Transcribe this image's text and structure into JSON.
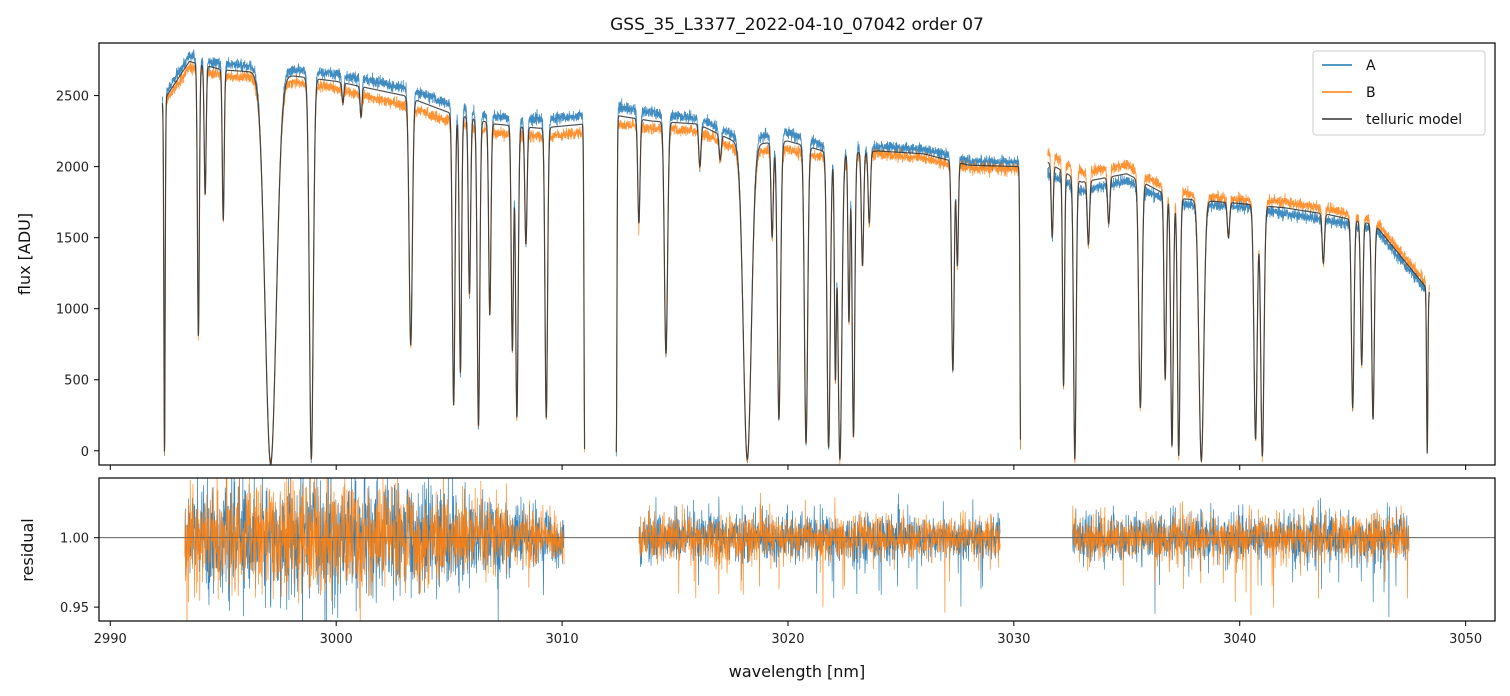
{
  "title": "GSS_35_L3377_2022-04-10_07042  order 07",
  "colors": {
    "A": "#1f77b4",
    "B": "#ff7f0e",
    "model": "#333333",
    "unity": "#555555"
  },
  "chart_data": [
    {
      "type": "line",
      "panel": "flux",
      "xlabel": "",
      "ylabel": "flux [ADU]",
      "xlim": [
        2989.5,
        3051.3
      ],
      "ylim": [
        -100,
        2870
      ],
      "xticks": [
        2990,
        3000,
        3010,
        3020,
        3030,
        3040,
        3050
      ],
      "yticks": [
        0,
        500,
        1000,
        1500,
        2000,
        2500
      ],
      "legend": {
        "position": "top-right",
        "entries": [
          "A",
          "B",
          "telluric model"
        ]
      },
      "segments": [
        [
          2992.3,
          3011.0
        ],
        [
          3012.4,
          3030.3
        ],
        [
          3031.5,
          3048.4
        ]
      ],
      "series": [
        {
          "name": "A",
          "continuum": [
            [
              2992.3,
              2480
            ],
            [
              2993.5,
              2780
            ],
            [
              2995,
              2720
            ],
            [
              2997,
              2700
            ],
            [
              3000,
              2650
            ],
            [
              3003,
              2560
            ],
            [
              3005,
              2440
            ],
            [
              3007,
              2350
            ],
            [
              3009,
              2330
            ],
            [
              3011,
              2360
            ],
            [
              3012.4,
              2420
            ],
            [
              3014,
              2380
            ],
            [
              3016,
              2340
            ],
            [
              3018,
              2200
            ],
            [
              3020,
              2240
            ],
            [
              3022,
              2120
            ],
            [
              3024,
              2140
            ],
            [
              3026,
              2120
            ],
            [
              3028,
              2040
            ],
            [
              3030.3,
              2030
            ],
            [
              3031.5,
              1960
            ],
            [
              3033,
              1830
            ],
            [
              3035,
              1900
            ],
            [
              3037,
              1740
            ],
            [
              3040,
              1720
            ],
            [
              3042,
              1670
            ],
            [
              3044,
              1620
            ],
            [
              3046,
              1560
            ],
            [
              3048.4,
              1100
            ]
          ]
        },
        {
          "name": "B",
          "continuum": [
            [
              2992.3,
              2420
            ],
            [
              2993.5,
              2700
            ],
            [
              2995,
              2640
            ],
            [
              2997,
              2620
            ],
            [
              3000,
              2550
            ],
            [
              3003,
              2430
            ],
            [
              3005,
              2320
            ],
            [
              3007,
              2240
            ],
            [
              3009,
              2210
            ],
            [
              3011,
              2240
            ],
            [
              3012.4,
              2300
            ],
            [
              3014,
              2270
            ],
            [
              3016,
              2250
            ],
            [
              3018,
              2100
            ],
            [
              3020,
              2120
            ],
            [
              3022,
              2050
            ],
            [
              3024,
              2090
            ],
            [
              3026,
              2060
            ],
            [
              3028,
              1990
            ],
            [
              3030.3,
              1980
            ],
            [
              3031.5,
              2100
            ],
            [
              3033,
              1960
            ],
            [
              3035,
              2010
            ],
            [
              3037,
              1820
            ],
            [
              3040,
              1770
            ],
            [
              3042,
              1750
            ],
            [
              3044,
              1700
            ],
            [
              3046,
              1620
            ],
            [
              3048.4,
              1150
            ]
          ]
        },
        {
          "name": "telluric model",
          "continuum": [
            [
              2992.3,
              2450
            ],
            [
              2993.5,
              2740
            ],
            [
              2995,
              2680
            ],
            [
              2997,
              2660
            ],
            [
              3000,
              2600
            ],
            [
              3003,
              2500
            ],
            [
              3005,
              2380
            ],
            [
              3007,
              2300
            ],
            [
              3009,
              2270
            ],
            [
              3011,
              2300
            ],
            [
              3012.4,
              2360
            ],
            [
              3014,
              2320
            ],
            [
              3016,
              2300
            ],
            [
              3018,
              2150
            ],
            [
              3020,
              2180
            ],
            [
              3022,
              2090
            ],
            [
              3024,
              2110
            ],
            [
              3026,
              2090
            ],
            [
              3028,
              2010
            ],
            [
              3030.3,
              2000
            ],
            [
              3031.5,
              2030
            ],
            [
              3033,
              1890
            ],
            [
              3035,
              1950
            ],
            [
              3037,
              1780
            ],
            [
              3040,
              1740
            ],
            [
              3042,
              1710
            ],
            [
              3044,
              1660
            ],
            [
              3046,
              1590
            ],
            [
              3048.4,
              1120
            ]
          ]
        }
      ],
      "absorption_lines": [
        {
          "x": 2992.4,
          "min": -30,
          "w": 0.04
        },
        {
          "x": 2993.9,
          "min": 800,
          "w": 0.06
        },
        {
          "x": 2994.2,
          "min": 1800,
          "w": 0.06
        },
        {
          "x": 2995.0,
          "min": 1620,
          "w": 0.06
        },
        {
          "x": 2997.1,
          "min": -90,
          "w": 0.35
        },
        {
          "x": 2998.9,
          "min": -60,
          "w": 0.12
        },
        {
          "x": 3000.3,
          "min": 2450,
          "w": 0.06
        },
        {
          "x": 3001.1,
          "min": 2350,
          "w": 0.06
        },
        {
          "x": 3003.3,
          "min": 740,
          "w": 0.1
        },
        {
          "x": 3005.2,
          "min": 320,
          "w": 0.08
        },
        {
          "x": 3005.5,
          "min": 550,
          "w": 0.07
        },
        {
          "x": 3005.9,
          "min": 1100,
          "w": 0.07
        },
        {
          "x": 3006.3,
          "min": 170,
          "w": 0.08
        },
        {
          "x": 3006.8,
          "min": 950,
          "w": 0.07
        },
        {
          "x": 3007.8,
          "min": 700,
          "w": 0.07
        },
        {
          "x": 3008.0,
          "min": 230,
          "w": 0.08
        },
        {
          "x": 3008.4,
          "min": 1450,
          "w": 0.07
        },
        {
          "x": 3009.3,
          "min": 230,
          "w": 0.08
        },
        {
          "x": 3011.0,
          "min": -10,
          "w": 0.04
        },
        {
          "x": 3012.4,
          "min": -10,
          "w": 0.04
        },
        {
          "x": 3013.4,
          "min": 1600,
          "w": 0.07
        },
        {
          "x": 3014.6,
          "min": 680,
          "w": 0.1
        },
        {
          "x": 3016.1,
          "min": 2000,
          "w": 0.07
        },
        {
          "x": 3017.0,
          "min": 2050,
          "w": 0.07
        },
        {
          "x": 3018.2,
          "min": -60,
          "w": 0.25
        },
        {
          "x": 3019.3,
          "min": 1500,
          "w": 0.07
        },
        {
          "x": 3019.6,
          "min": 220,
          "w": 0.1
        },
        {
          "x": 3020.8,
          "min": 50,
          "w": 0.1
        },
        {
          "x": 3021.8,
          "min": 20,
          "w": 0.1
        },
        {
          "x": 3022.1,
          "min": 520,
          "w": 0.06
        },
        {
          "x": 3022.3,
          "min": -60,
          "w": 0.12
        },
        {
          "x": 3022.7,
          "min": 900,
          "w": 0.06
        },
        {
          "x": 3022.9,
          "min": 100,
          "w": 0.08
        },
        {
          "x": 3023.3,
          "min": 1300,
          "w": 0.07
        },
        {
          "x": 3023.6,
          "min": 1600,
          "w": 0.07
        },
        {
          "x": 3027.3,
          "min": 560,
          "w": 0.08
        },
        {
          "x": 3027.5,
          "min": 1300,
          "w": 0.06
        },
        {
          "x": 3030.3,
          "min": 0,
          "w": 0.04
        },
        {
          "x": 3031.7,
          "min": 1500,
          "w": 0.06
        },
        {
          "x": 3032.2,
          "min": 450,
          "w": 0.06
        },
        {
          "x": 3032.7,
          "min": -60,
          "w": 0.08
        },
        {
          "x": 3033.3,
          "min": 1450,
          "w": 0.07
        },
        {
          "x": 3034.2,
          "min": 1600,
          "w": 0.07
        },
        {
          "x": 3035.6,
          "min": 300,
          "w": 0.1
        },
        {
          "x": 3036.7,
          "min": 500,
          "w": 0.07
        },
        {
          "x": 3037.0,
          "min": 30,
          "w": 0.08
        },
        {
          "x": 3037.3,
          "min": -40,
          "w": 0.08
        },
        {
          "x": 3038.3,
          "min": -90,
          "w": 0.15
        },
        {
          "x": 3039.5,
          "min": 1500,
          "w": 0.07
        },
        {
          "x": 3040.7,
          "min": 80,
          "w": 0.1
        },
        {
          "x": 3041.0,
          "min": -40,
          "w": 0.1
        },
        {
          "x": 3043.7,
          "min": 1320,
          "w": 0.07
        },
        {
          "x": 3045.0,
          "min": 300,
          "w": 0.08
        },
        {
          "x": 3045.4,
          "min": 600,
          "w": 0.07
        },
        {
          "x": 3045.9,
          "min": 220,
          "w": 0.08
        },
        {
          "x": 3048.3,
          "min": -20,
          "w": 0.04
        }
      ]
    },
    {
      "type": "line",
      "panel": "residual",
      "xlabel": "wavelength [nm]",
      "ylabel": "residual",
      "xlim": [
        2989.5,
        3051.3
      ],
      "ylim": [
        0.94,
        1.043
      ],
      "xticks": [
        2990,
        3000,
        3010,
        3020,
        3030,
        3040,
        3050
      ],
      "yticks": [
        0.95,
        1.0
      ],
      "reference_line": 1.0,
      "segments": [
        [
          2993.3,
          3010.1
        ],
        [
          3013.4,
          3029.4
        ],
        [
          3032.6,
          3047.5
        ]
      ],
      "series": [
        {
          "name": "A",
          "spread": [
            [
              2993.3,
              0.025
            ],
            [
              3000,
              0.03
            ],
            [
              3006,
              0.022
            ],
            [
              3010.1,
              0.012
            ],
            [
              3013.4,
              0.013
            ],
            [
              3021,
              0.012
            ],
            [
              3029.4,
              0.01
            ],
            [
              3032.6,
              0.012
            ],
            [
              3040,
              0.012
            ],
            [
              3047.5,
              0.012
            ]
          ]
        },
        {
          "name": "B",
          "spread": [
            [
              2993.3,
              0.023
            ],
            [
              3000,
              0.028
            ],
            [
              3006,
              0.02
            ],
            [
              3010.1,
              0.011
            ],
            [
              3013.4,
              0.012
            ],
            [
              3021,
              0.011
            ],
            [
              3029.4,
              0.01
            ],
            [
              3032.6,
              0.011
            ],
            [
              3040,
              0.011
            ],
            [
              3047.5,
              0.011
            ]
          ]
        }
      ]
    }
  ]
}
